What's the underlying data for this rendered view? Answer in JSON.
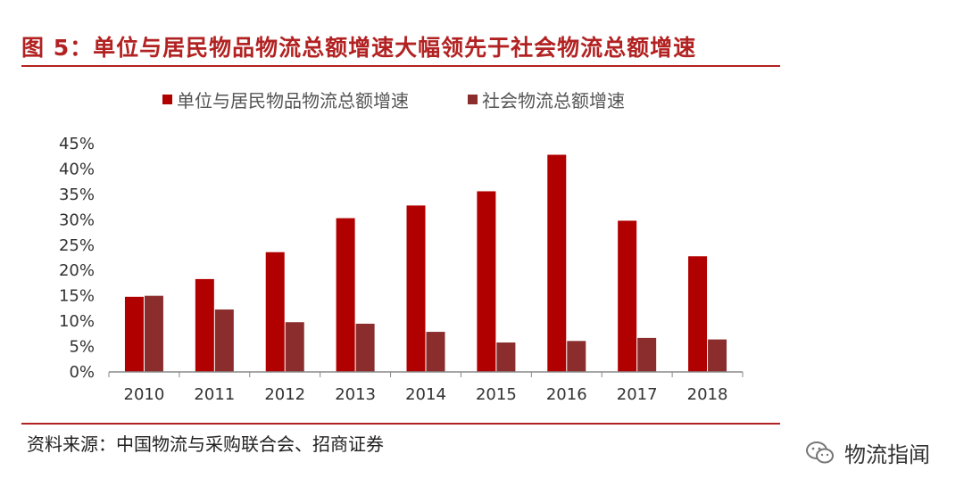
{
  "figure": {
    "title": "图 5：单位与居民物品物流总额增速大幅领先于社会物流总额增速",
    "source": "资料来源：中国物流与采购联合会、招商证券",
    "watermark": "物流指闻",
    "watermark_icon": "wechat-icon"
  },
  "colors": {
    "series1": "#b00000",
    "series2": "#8b2d2d",
    "accent": "#b22222",
    "axis": "#888888"
  },
  "chart_data": {
    "type": "bar",
    "title": "",
    "xlabel": "",
    "ylabel": "",
    "categories": [
      "2010",
      "2011",
      "2012",
      "2013",
      "2014",
      "2015",
      "2016",
      "2017",
      "2018"
    ],
    "series": [
      {
        "name": "单位与居民物品物流总额增速",
        "values": [
          14.8,
          18.3,
          23.6,
          30.3,
          32.8,
          35.6,
          42.8,
          29.8,
          22.8
        ]
      },
      {
        "name": "社会物流总额增速",
        "values": [
          15.0,
          12.3,
          9.8,
          9.5,
          7.9,
          5.8,
          6.1,
          6.7,
          6.4
        ]
      }
    ],
    "ylim": [
      0,
      45
    ],
    "yticks": [
      0,
      5,
      10,
      15,
      20,
      25,
      30,
      35,
      40,
      45
    ],
    "ytick_labels": [
      "0%",
      "5%",
      "10%",
      "15%",
      "20%",
      "25%",
      "30%",
      "35%",
      "40%",
      "45%"
    ],
    "grid": false,
    "legend_position": "top"
  }
}
